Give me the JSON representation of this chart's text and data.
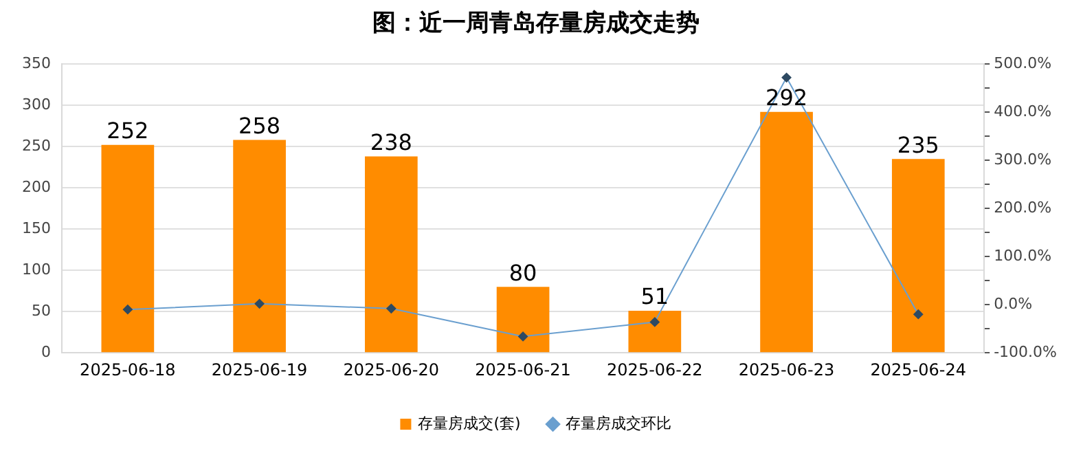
{
  "chart_data": {
    "type": "bar",
    "title": "图：近一周青岛存量房成交走势",
    "categories": [
      "2025-06-18",
      "2025-06-19",
      "2025-06-20",
      "2025-06-21",
      "2025-06-22",
      "2025-06-23",
      "2025-06-24"
    ],
    "series": [
      {
        "name": "存量房成交(套)",
        "color": "#ff8c00",
        "values": [
          252,
          258,
          238,
          80,
          51,
          292,
          235
        ],
        "value_labels": [
          "252",
          "258",
          "238",
          "80",
          "51",
          "292",
          "235"
        ]
      },
      {
        "name": "存量房成交环比",
        "type": "line",
        "axis": "y2",
        "color": "#6a9fcf",
        "marker": "diamond",
        "values": [
          -10,
          2,
          -8,
          -66,
          -36,
          472,
          -20
        ]
      }
    ],
    "ylim": [
      0,
      350
    ],
    "yticks": [
      0,
      50,
      100,
      150,
      200,
      250,
      300,
      350
    ],
    "y2lim": [
      -100,
      500
    ],
    "y2ticks": [
      {
        "value": -100,
        "label": "-100.0%"
      },
      {
        "value": -50,
        "label": null
      },
      {
        "value": 0,
        "label": "0.0%"
      },
      {
        "value": 50,
        "label": null
      },
      {
        "value": 100,
        "label": "100.0%"
      },
      {
        "value": 150,
        "label": null
      },
      {
        "value": 200,
        "label": "200.0%"
      },
      {
        "value": 250,
        "label": null
      },
      {
        "value": 300,
        "label": "300.0%"
      },
      {
        "value": 350,
        "label": null
      },
      {
        "value": 400,
        "label": "400.0%"
      },
      {
        "value": 450,
        "label": null
      },
      {
        "value": 500,
        "label": "500.0%"
      }
    ],
    "grid": "y",
    "legend": "bottom"
  }
}
